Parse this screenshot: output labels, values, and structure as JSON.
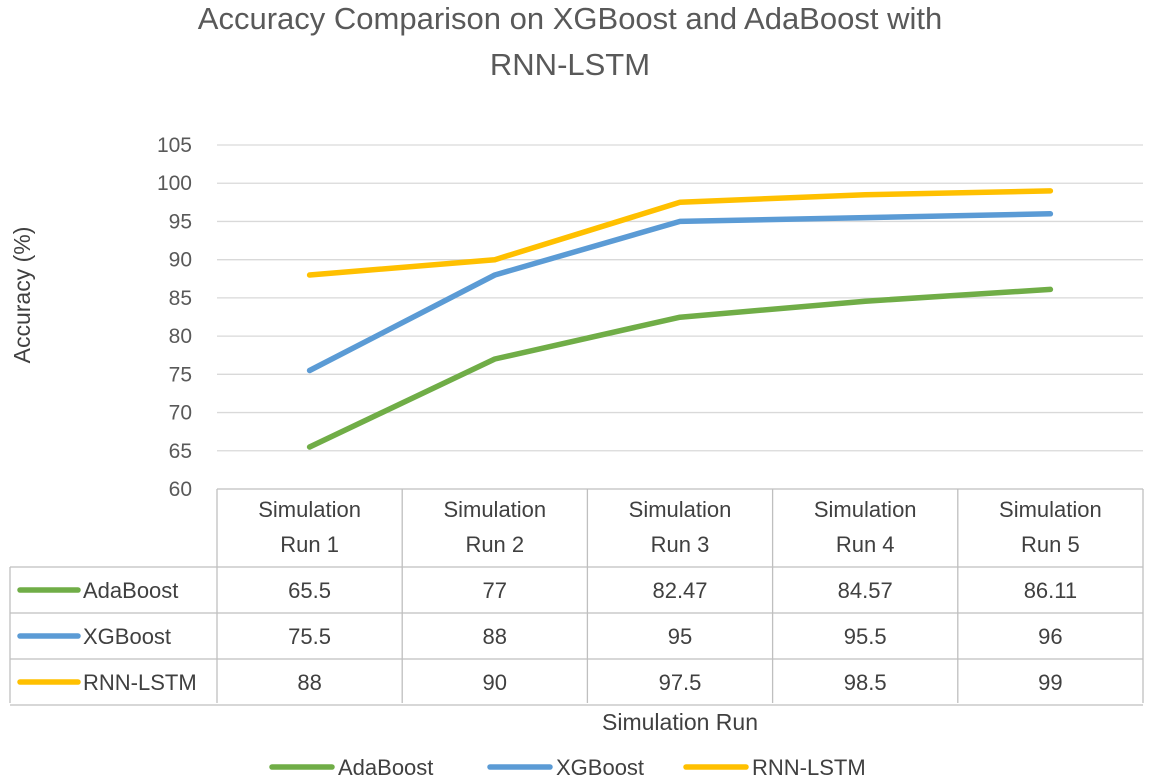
{
  "chart_data": {
    "type": "line",
    "title": "Accuracy Comparison on XGBoost and AdaBoost with RNN-LSTM",
    "title_lines": [
      "Accuracy Comparison on XGBoost and AdaBoost with",
      "RNN-LSTM"
    ],
    "xlabel": "Simulation Run",
    "ylabel": "Accuracy (%)",
    "ylim": [
      60,
      105
    ],
    "ytick_step": 5,
    "grid": true,
    "legend_position": "bottom",
    "categories": [
      [
        "Simulation",
        "Run 1"
      ],
      [
        "Simulation",
        "Run 2"
      ],
      [
        "Simulation",
        "Run 3"
      ],
      [
        "Simulation",
        "Run 4"
      ],
      [
        "Simulation",
        "Run 5"
      ]
    ],
    "series": [
      {
        "name": "AdaBoost",
        "color": "#70ad47",
        "values": [
          65.5,
          77,
          82.47,
          84.57,
          86.11
        ],
        "labels": [
          "65.5",
          "77",
          "82.47",
          "84.57",
          "86.11"
        ]
      },
      {
        "name": "XGBoost",
        "color": "#5b9bd5",
        "values": [
          75.5,
          88,
          95,
          95.5,
          96
        ],
        "labels": [
          "75.5",
          "88",
          "95",
          "95.5",
          "96"
        ]
      },
      {
        "name": "RNN-LSTM",
        "color": "#ffc000",
        "values": [
          88,
          90,
          97.5,
          98.5,
          99
        ],
        "labels": [
          "88",
          "90",
          "97.5",
          "98.5",
          "99"
        ]
      }
    ]
  }
}
